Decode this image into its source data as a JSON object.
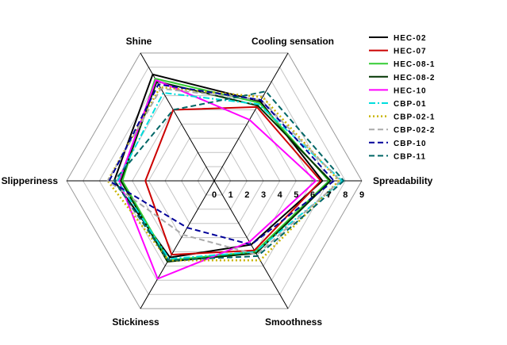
{
  "chart_data": {
    "type": "radar",
    "axes": [
      "Spreadability",
      "Smoothness",
      "Stickiness",
      "Slipperiness",
      "Shine",
      "Cooling sensation"
    ],
    "ticks": [
      "0",
      "1",
      "2",
      "3",
      "4",
      "5",
      "6",
      "7",
      "8",
      "9"
    ],
    "rmax": 9,
    "grid": true,
    "legend_position": "right",
    "series": [
      {
        "name": "HEC-02",
        "color": "#000000",
        "dash": "solid",
        "values": [
          6.6,
          4.5,
          5.4,
          6.1,
          7.5,
          5.6
        ]
      },
      {
        "name": "HEC-07",
        "color": "#cc0000",
        "dash": "solid",
        "values": [
          6.5,
          4.9,
          5.2,
          4.2,
          5.0,
          5.2
        ]
      },
      {
        "name": "HEC-08-1",
        "color": "#33cc33",
        "dash": "solid",
        "values": [
          7.0,
          5.0,
          5.6,
          5.6,
          7.2,
          5.5
        ]
      },
      {
        "name": "HEC-08-2",
        "color": "#003300",
        "dash": "solid",
        "values": [
          7.1,
          5.1,
          5.7,
          5.7,
          7.0,
          5.3
        ]
      },
      {
        "name": "HEC-10",
        "color": "#ff00ff",
        "dash": "solid",
        "values": [
          6.2,
          4.3,
          6.9,
          5.8,
          7.1,
          4.3
        ]
      },
      {
        "name": "CBP-01",
        "color": "#00dddd",
        "dash": "dashdot",
        "values": [
          7.8,
          5.0,
          5.5,
          5.9,
          6.2,
          5.4
        ]
      },
      {
        "name": "CBP-02-1",
        "color": "#c8b400",
        "dash": "dot",
        "values": [
          7.6,
          5.6,
          5.6,
          6.5,
          6.6,
          5.9
        ]
      },
      {
        "name": "CBP-02-2",
        "color": "#aaaaaa",
        "dash": "dash",
        "values": [
          7.7,
          5.2,
          3.8,
          6.5,
          6.5,
          5.7
        ]
      },
      {
        "name": "CBP-10",
        "color": "#000099",
        "dash": "dash",
        "values": [
          7.3,
          4.5,
          3.3,
          6.4,
          6.8,
          5.7
        ]
      },
      {
        "name": "CBP-11",
        "color": "#006666",
        "dash": "dash",
        "values": [
          7.9,
          5.3,
          5.6,
          6.1,
          5.0,
          6.3
        ]
      }
    ]
  }
}
